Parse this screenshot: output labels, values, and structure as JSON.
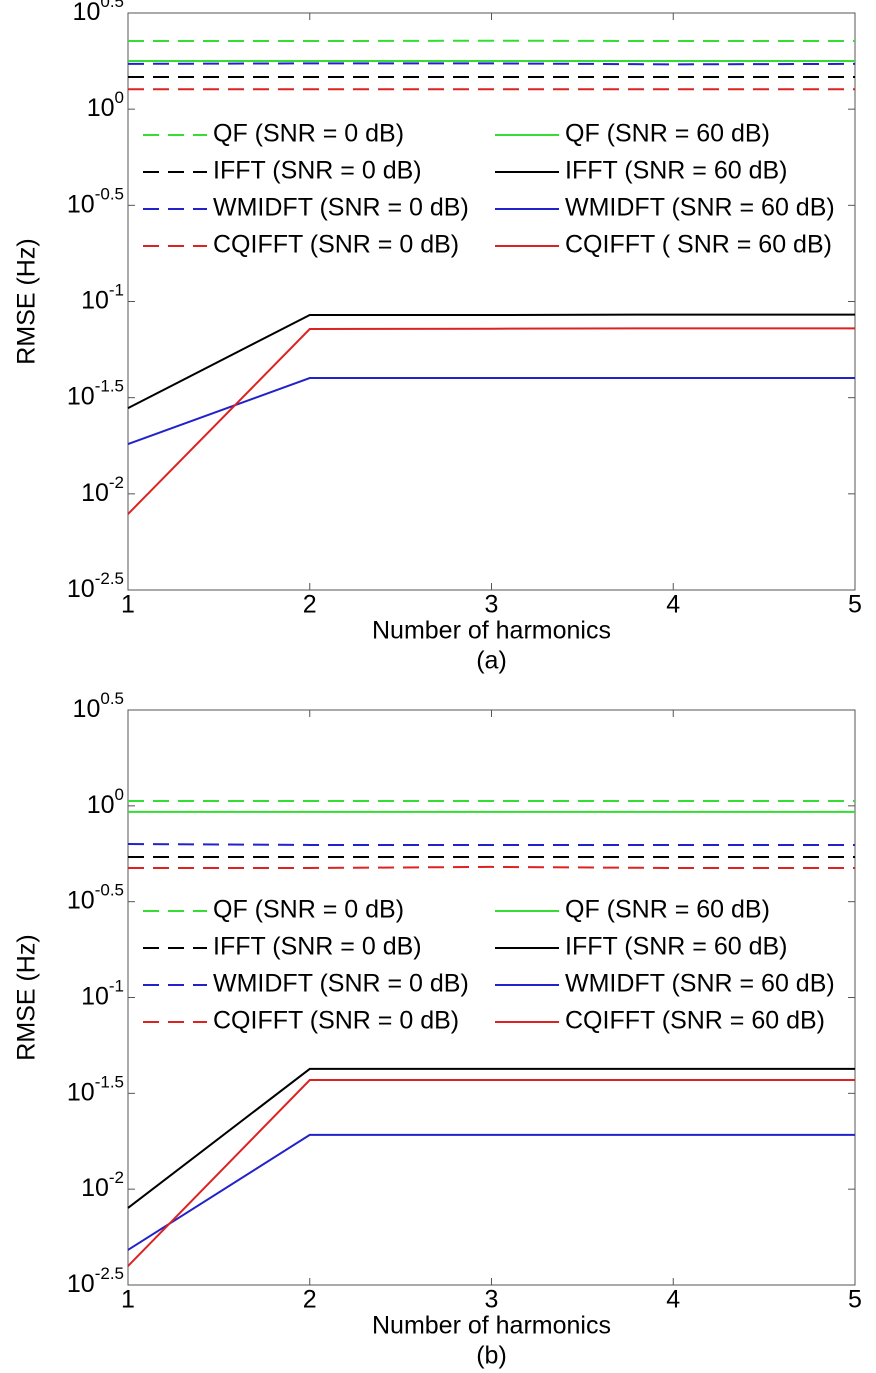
{
  "chart_data": [
    {
      "type": "line",
      "caption": "(a)",
      "xlabel": "Number of harmonics",
      "ylabel": "RMSE (Hz)",
      "x": [
        1,
        2,
        3,
        4,
        5
      ],
      "xlim": [
        1,
        5
      ],
      "xticks": [
        1,
        2,
        3,
        4,
        5
      ],
      "yscale": "log",
      "ylim": [
        0.0031623,
        3.1623
      ],
      "yticks": [
        {
          "value": 0.0031623,
          "label": "10^-2.5"
        },
        {
          "value": 0.01,
          "label": "10^-2"
        },
        {
          "value": 0.031623,
          "label": "10^-1.5"
        },
        {
          "value": 0.1,
          "label": "10^-1"
        },
        {
          "value": 0.31623,
          "label": "10^-0.5"
        },
        {
          "value": 1,
          "label": "10^0"
        },
        {
          "value": 3.1623,
          "label": "10^0.5"
        }
      ],
      "grid": false,
      "series": [
        {
          "name": "QF (SNR = 0 dB)",
          "color": "#33dd33",
          "linestyle": "dashed",
          "values": [
            2.26,
            2.26,
            2.27,
            2.26,
            2.26
          ]
        },
        {
          "name": "QF (SNR = 60 dB)",
          "color": "#33dd33",
          "linestyle": "solid",
          "values": [
            1.78,
            1.78,
            1.78,
            1.78,
            1.78
          ]
        },
        {
          "name": "IFFT (SNR = 0 dB)",
          "color": "#000000",
          "linestyle": "dashed",
          "values": [
            1.47,
            1.47,
            1.47,
            1.47,
            1.47
          ]
        },
        {
          "name": "IFFT (SNR = 60 dB)",
          "color": "#000000",
          "linestyle": "solid",
          "values": [
            0.0279,
            0.0851,
            0.0851,
            0.0855,
            0.0855
          ]
        },
        {
          "name": "WMIDFT (SNR = 0 dB)",
          "color": "#2222cc",
          "linestyle": "dashed",
          "values": [
            1.72,
            1.73,
            1.73,
            1.71,
            1.72
          ]
        },
        {
          "name": "WMIDFT (SNR = 60 dB)",
          "color": "#2222cc",
          "linestyle": "solid",
          "values": [
            0.01815,
            0.04,
            0.04,
            0.04,
            0.04
          ]
        },
        {
          "name": "CQIFFT (SNR = 0 dB)",
          "color": "#dd2222",
          "linestyle": "dashed",
          "values": [
            1.27,
            1.27,
            1.27,
            1.27,
            1.27
          ]
        },
        {
          "name": "CQIFFT ( SNR = 60 dB)",
          "color": "#dd2222",
          "linestyle": "solid",
          "values": [
            0.00785,
            0.0719,
            0.0722,
            0.0725,
            0.0725
          ]
        }
      ]
    },
    {
      "type": "line",
      "caption": "(b)",
      "xlabel": "Number of harmonics",
      "ylabel": "RMSE (Hz)",
      "x": [
        1,
        2,
        3,
        4,
        5
      ],
      "xlim": [
        1,
        5
      ],
      "xticks": [
        1,
        2,
        3,
        4,
        5
      ],
      "yscale": "log",
      "ylim": [
        0.0031623,
        3.1623
      ],
      "yticks": [
        {
          "value": 0.0031623,
          "label": "10^-2.5"
        },
        {
          "value": 0.01,
          "label": "10^-2"
        },
        {
          "value": 0.031623,
          "label": "10^-1.5"
        },
        {
          "value": 0.1,
          "label": "10^-1"
        },
        {
          "value": 0.31623,
          "label": "10^-0.5"
        },
        {
          "value": 1,
          "label": "10^0"
        },
        {
          "value": 3.1623,
          "label": "10^0.5"
        }
      ],
      "grid": false,
      "series": [
        {
          "name": "QF (SNR = 0 dB)",
          "color": "#33dd33",
          "linestyle": "dashed",
          "values": [
            1.06,
            1.06,
            1.06,
            1.06,
            1.06
          ]
        },
        {
          "name": "QF (SNR = 60 dB)",
          "color": "#33dd33",
          "linestyle": "solid",
          "values": [
            0.93,
            0.93,
            0.93,
            0.93,
            0.93
          ]
        },
        {
          "name": "IFFT (SNR = 0 dB)",
          "color": "#000000",
          "linestyle": "dashed",
          "values": [
            0.541,
            0.541,
            0.541,
            0.541,
            0.541
          ]
        },
        {
          "name": "IFFT (SNR = 60 dB)",
          "color": "#000000",
          "linestyle": "solid",
          "values": [
            0.00798,
            0.0424,
            0.0424,
            0.0424,
            0.0424
          ]
        },
        {
          "name": "WMIDFT (SNR = 0 dB)",
          "color": "#2222cc",
          "linestyle": "dashed",
          "values": [
            0.632,
            0.625,
            0.625,
            0.625,
            0.625
          ]
        },
        {
          "name": "WMIDFT (SNR = 60 dB)",
          "color": "#2222cc",
          "linestyle": "solid",
          "values": [
            0.00482,
            0.0192,
            0.0192,
            0.0192,
            0.0192
          ]
        },
        {
          "name": "CQIFFT (SNR = 0 dB)",
          "color": "#dd2222",
          "linestyle": "dashed",
          "values": [
            0.474,
            0.474,
            0.48,
            0.474,
            0.474
          ]
        },
        {
          "name": "CQIFFT (SNR = 60 dB)",
          "color": "#dd2222",
          "linestyle": "solid",
          "values": [
            0.00397,
            0.0371,
            0.0371,
            0.0371,
            0.0371
          ]
        }
      ]
    }
  ]
}
